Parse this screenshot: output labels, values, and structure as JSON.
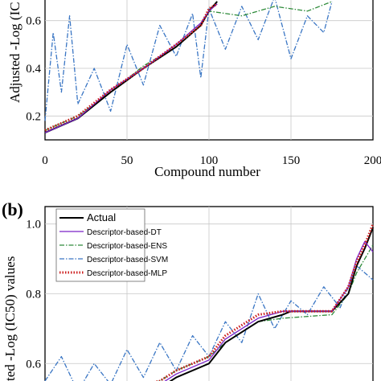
{
  "chart_data": [
    {
      "type": "line",
      "panel_label": "",
      "xlabel": "Compound number",
      "ylabel": "Adjusted -Log (IC",
      "xlim": [
        0,
        200
      ],
      "ylim": [
        0.1,
        0.7
      ],
      "xticks": [
        "0",
        "50",
        "100",
        "150",
        "200"
      ],
      "yticks": [
        "0.2",
        "0.4",
        "0.6"
      ],
      "grid": true,
      "series": [
        {
          "name": "Actual",
          "color": "#000000",
          "style": "solid",
          "x": [
            0,
            20,
            40,
            60,
            80,
            95,
            100,
            105
          ],
          "y": [
            0.13,
            0.19,
            0.3,
            0.4,
            0.49,
            0.58,
            0.64,
            0.68
          ]
        },
        {
          "name": "Descriptor-based-DT",
          "color": "#7a22c8",
          "style": "solid",
          "x": [
            0,
            20,
            40,
            60,
            80,
            95,
            100,
            105
          ],
          "y": [
            0.13,
            0.19,
            0.31,
            0.4,
            0.5,
            0.59,
            0.64,
            0.67
          ]
        },
        {
          "name": "Descriptor-based-ENS",
          "color": "#2e8b3a",
          "style": "dashdot",
          "x": [
            0,
            20,
            40,
            60,
            80,
            95,
            100,
            120,
            140,
            160,
            175
          ],
          "y": [
            0.14,
            0.2,
            0.3,
            0.41,
            0.49,
            0.58,
            0.64,
            0.62,
            0.66,
            0.64,
            0.68
          ]
        },
        {
          "name": "Descriptor-based-SVM",
          "color": "#3a76c4",
          "style": "dashdot",
          "x": [
            0,
            5,
            10,
            15,
            20,
            30,
            40,
            50,
            60,
            70,
            80,
            90,
            95,
            100,
            110,
            120,
            130,
            140,
            150,
            160,
            170,
            175
          ],
          "y": [
            0.18,
            0.55,
            0.3,
            0.62,
            0.25,
            0.4,
            0.22,
            0.5,
            0.33,
            0.58,
            0.45,
            0.63,
            0.36,
            0.65,
            0.48,
            0.66,
            0.52,
            0.7,
            0.44,
            0.62,
            0.55,
            0.68
          ]
        },
        {
          "name": "Descriptor-based-MLP",
          "color": "#cc1f1f",
          "style": "dotted",
          "x": [
            0,
            20,
            40,
            60,
            80,
            95,
            100,
            105
          ],
          "y": [
            0.14,
            0.2,
            0.31,
            0.4,
            0.5,
            0.58,
            0.65,
            0.67
          ]
        }
      ]
    },
    {
      "type": "line",
      "panel_label": "(b)",
      "xlabel": "",
      "ylabel": "ted -Log (IC50) values",
      "xlim": [
        0,
        200
      ],
      "ylim": [
        0.52,
        1.05
      ],
      "yticks": [
        "0.6",
        "0.8",
        "1.0"
      ],
      "grid": true,
      "legend_position": "top-left",
      "series": [
        {
          "name": "Actual",
          "color": "#000000",
          "style": "solid",
          "x": [
            0,
            40,
            70,
            80,
            100,
            110,
            130,
            145,
            150,
            160,
            175,
            185,
            190,
            195,
            200
          ],
          "y": [
            0.5,
            0.51,
            0.53,
            0.56,
            0.6,
            0.66,
            0.72,
            0.74,
            0.75,
            0.75,
            0.75,
            0.8,
            0.88,
            0.93,
            0.99
          ]
        },
        {
          "name": "Descriptor-based-DT",
          "color": "#7a22c8",
          "style": "solid",
          "x": [
            0,
            40,
            70,
            80,
            100,
            110,
            130,
            145,
            150,
            175,
            185,
            190,
            195,
            200
          ],
          "y": [
            0.5,
            0.52,
            0.54,
            0.57,
            0.61,
            0.67,
            0.73,
            0.75,
            0.75,
            0.75,
            0.82,
            0.9,
            0.95,
            0.92
          ]
        },
        {
          "name": "Descriptor-based-ENS",
          "color": "#2e8b3a",
          "style": "dashdot",
          "x": [
            0,
            40,
            70,
            80,
            100,
            110,
            130,
            145,
            175,
            185,
            190,
            195,
            200
          ],
          "y": [
            0.51,
            0.52,
            0.55,
            0.58,
            0.62,
            0.66,
            0.72,
            0.73,
            0.74,
            0.8,
            0.86,
            0.9,
            0.94
          ]
        },
        {
          "name": "Descriptor-based-SVM",
          "color": "#3a76c4",
          "style": "dashdot",
          "x": [
            0,
            10,
            20,
            30,
            40,
            50,
            60,
            70,
            80,
            90,
            100,
            110,
            120,
            130,
            140,
            150,
            160,
            170,
            180,
            190,
            200
          ],
          "y": [
            0.55,
            0.62,
            0.52,
            0.6,
            0.54,
            0.64,
            0.56,
            0.66,
            0.58,
            0.68,
            0.62,
            0.72,
            0.66,
            0.8,
            0.7,
            0.78,
            0.74,
            0.82,
            0.76,
            0.88,
            0.84
          ]
        },
        {
          "name": "Descriptor-based-MLP",
          "color": "#cc1f1f",
          "style": "dotted",
          "x": [
            0,
            40,
            70,
            80,
            100,
            110,
            130,
            145,
            175,
            185,
            190,
            195,
            200
          ],
          "y": [
            0.51,
            0.52,
            0.55,
            0.58,
            0.62,
            0.68,
            0.74,
            0.75,
            0.75,
            0.82,
            0.89,
            0.94,
            1.0
          ]
        }
      ]
    }
  ]
}
